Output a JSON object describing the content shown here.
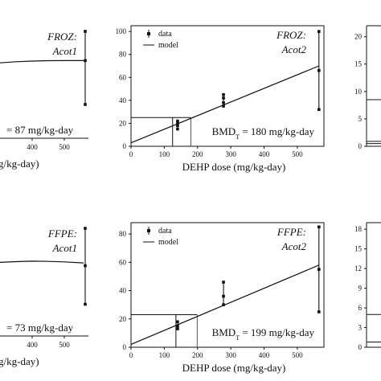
{
  "chart_data": [
    {
      "type": "scatter",
      "panel": "top-left",
      "label": [
        "FROZ:",
        "Acot1"
      ],
      "bmd_text": "= 87 mg/kg-day",
      "xlabel": "g/kg-day)",
      "xticks": [
        "400",
        "500"
      ],
      "xlim": [
        0,
        575
      ],
      "ylim": [
        0,
        100
      ],
      "model": [
        [
          0,
          52
        ],
        [
          50,
          55
        ],
        [
          100,
          58
        ],
        [
          150,
          61
        ],
        [
          200,
          63.5
        ],
        [
          250,
          65.5
        ],
        [
          300,
          67
        ],
        [
          350,
          68
        ],
        [
          400,
          68.6
        ],
        [
          450,
          68.9
        ],
        [
          500,
          69
        ],
        [
          560,
          69
        ]
      ],
      "data": [
        {
          "x": 565,
          "values": [
            30,
            69,
            95
          ]
        }
      ]
    },
    {
      "type": "scatter",
      "panel": "top-center",
      "label": [
        "FROZ:",
        "Acot2"
      ],
      "bmd_text": "BMD",
      "bmd_sub": "T",
      "bmd_rest": " = 180 mg/kg-day",
      "xlabel": "DEHP dose (mg/kg-day)",
      "xticks": [
        "0",
        "100",
        "200",
        "300",
        "400",
        "500"
      ],
      "yticks": [
        "0",
        "20",
        "40",
        "60",
        "80",
        "100"
      ],
      "legend": [
        "data",
        "model"
      ],
      "xlim": [
        0,
        580
      ],
      "ylim": [
        0,
        105
      ],
      "model_line": [
        [
          0,
          3
        ],
        [
          565,
          70
        ]
      ],
      "bmd_lines": {
        "y": 25,
        "x_bmdl": 125,
        "x_bmd": 180
      },
      "data": [
        {
          "x": 140,
          "values": [
            15,
            18,
            20,
            22
          ]
        },
        {
          "x": 278,
          "values": [
            35,
            38,
            42,
            45
          ]
        },
        {
          "x": 565,
          "values": [
            32,
            66,
            100
          ]
        }
      ]
    },
    {
      "type": "scatter",
      "panel": "top-right",
      "yticks": [
        "0",
        "5",
        "10",
        "15",
        "20"
      ],
      "ylim": [
        0,
        22
      ]
    },
    {
      "type": "scatter",
      "panel": "bottom-left",
      "label": [
        "FFPE:",
        "Acot1"
      ],
      "bmd_text": "= 73 mg/kg-day",
      "xlabel": "g/kg-day)",
      "xticks": [
        "400",
        "500"
      ],
      "xlim": [
        0,
        575
      ],
      "ylim": [
        0,
        100
      ],
      "model": [
        [
          0,
          52
        ],
        [
          50,
          55
        ],
        [
          100,
          58
        ],
        [
          150,
          60.5
        ],
        [
          200,
          62.5
        ],
        [
          250,
          64
        ],
        [
          300,
          65
        ],
        [
          350,
          65.6
        ],
        [
          400,
          66
        ],
        [
          450,
          65.8
        ],
        [
          500,
          65.4
        ],
        [
          560,
          64.5
        ]
      ],
      "data": [
        {
          "x": 565,
          "values": [
            28,
            62,
            95
          ]
        }
      ]
    },
    {
      "type": "scatter",
      "panel": "bottom-center",
      "label": [
        "FFPE:",
        "Acot2"
      ],
      "bmd_text": "BMD",
      "bmd_sub": "T",
      "bmd_rest": " = 199 mg/kg-day",
      "xlabel": "DEHP dose (mg/kg-day)",
      "xticks": [
        "0",
        "100",
        "200",
        "300",
        "400",
        "500"
      ],
      "yticks": [
        "0",
        "20",
        "40",
        "60",
        "80"
      ],
      "legend": [
        "data",
        "model"
      ],
      "xlim": [
        0,
        580
      ],
      "ylim": [
        0,
        88
      ],
      "model_line": [
        [
          0,
          2
        ],
        [
          565,
          58
        ]
      ],
      "bmd_lines": {
        "y": 23,
        "x_bmdl": 135,
        "x_bmd": 199
      },
      "data": [
        {
          "x": 140,
          "values": [
            13,
            15,
            18
          ]
        },
        {
          "x": 278,
          "values": [
            30,
            36,
            46
          ]
        },
        {
          "x": 565,
          "values": [
            25,
            55,
            85
          ]
        }
      ]
    },
    {
      "type": "scatter",
      "panel": "bottom-right",
      "yticks": [
        "0",
        "3",
        "6",
        "9",
        "12",
        "15",
        "18"
      ],
      "ylim": [
        0,
        19
      ]
    }
  ]
}
